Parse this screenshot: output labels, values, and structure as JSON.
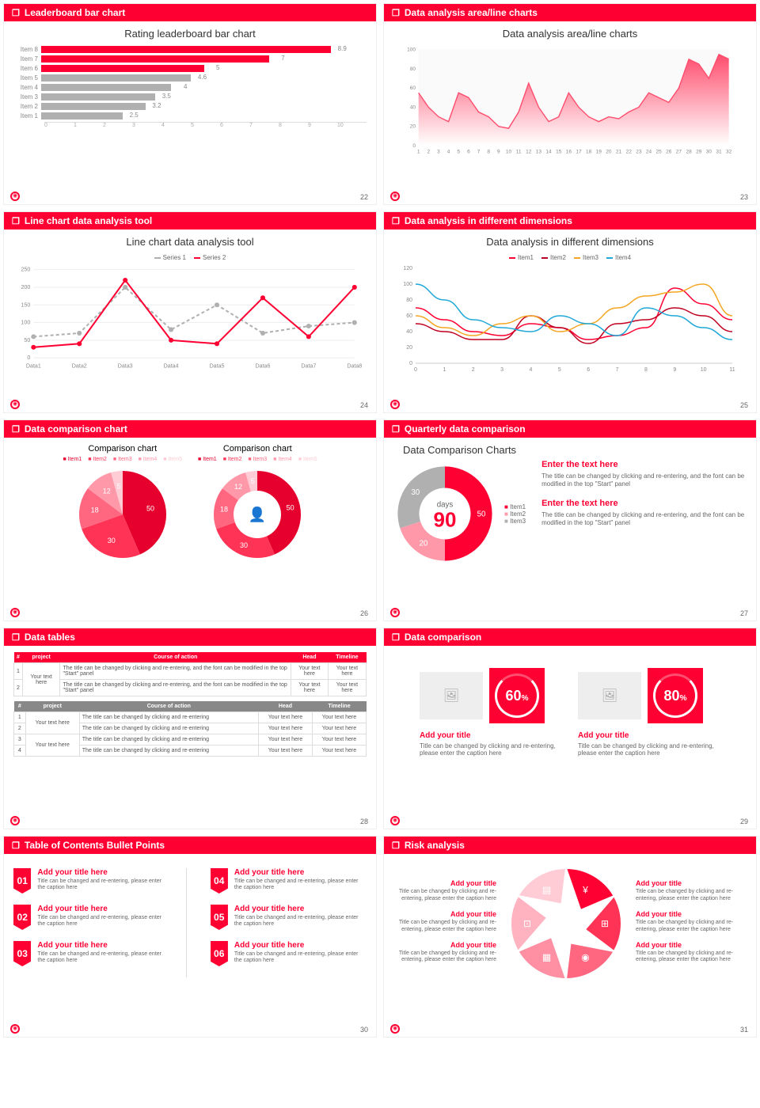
{
  "colors": {
    "accent": "#ff0033",
    "gray": "#b0b0b0",
    "text": "#555555",
    "light": "#eeeeee"
  },
  "slides": [
    {
      "header": "Leaderboard bar chart",
      "page": 22,
      "title": "Rating leaderboard bar chart",
      "barchart": {
        "type": "bar-horizontal",
        "xlim": [
          0,
          10
        ],
        "xtick_step": 1,
        "items": [
          {
            "label": "Item 8",
            "value": 8.9,
            "color": "#ff0033"
          },
          {
            "label": "Item 7",
            "value": 7.0,
            "color": "#ff0033"
          },
          {
            "label": "Item 6",
            "value": 5.0,
            "color": "#ff0033"
          },
          {
            "label": "Item 5",
            "value": 4.6,
            "color": "#b0b0b0"
          },
          {
            "label": "Item 4",
            "value": 4.0,
            "color": "#b0b0b0"
          },
          {
            "label": "Item 3",
            "value": 3.5,
            "color": "#b0b0b0"
          },
          {
            "label": "Item 2",
            "value": 3.2,
            "color": "#b0b0b0"
          },
          {
            "label": "Item 1",
            "value": 2.5,
            "color": "#b0b0b0"
          }
        ]
      }
    },
    {
      "header": "Data analysis area/line charts",
      "page": 23,
      "title": "Data analysis area/line charts",
      "areachart": {
        "type": "area",
        "ylim": [
          0,
          100
        ],
        "ytick_step": 20,
        "x_count": 32,
        "fill": "#ff4d6d",
        "background": "#fafafa",
        "values": [
          55,
          40,
          30,
          25,
          55,
          50,
          35,
          30,
          20,
          18,
          35,
          65,
          40,
          25,
          30,
          55,
          40,
          30,
          25,
          30,
          28,
          35,
          40,
          55,
          50,
          45,
          60,
          90,
          85,
          70,
          95,
          90
        ]
      }
    },
    {
      "header": "Line chart data analysis tool",
      "page": 24,
      "title": "Line chart data analysis tool",
      "linechart": {
        "type": "line",
        "ylim": [
          0,
          250
        ],
        "ytick_step": 50,
        "categories": [
          "Data1",
          "Data2",
          "Data3",
          "Data4",
          "Data5",
          "Data6",
          "Data7",
          "Data8"
        ],
        "series": [
          {
            "name": "Series 1",
            "color": "#b0b0b0",
            "dash": "4,3",
            "values": [
              60,
              70,
              200,
              80,
              150,
              70,
              90,
              100
            ]
          },
          {
            "name": "Series 2",
            "color": "#ff0033",
            "dash": "0",
            "values": [
              30,
              40,
              220,
              50,
              40,
              170,
              60,
              200
            ]
          }
        ]
      }
    },
    {
      "header": "Data analysis in different dimensions",
      "page": 25,
      "title": "Data analysis in different dimensions",
      "multiline": {
        "type": "line",
        "ylim": [
          0,
          120
        ],
        "ytick_step": 20,
        "x_count": 12,
        "series": [
          {
            "name": "Item1",
            "color": "#ff0033",
            "values": [
              70,
              55,
              40,
              35,
              50,
              45,
              30,
              35,
              45,
              95,
              75,
              55
            ]
          },
          {
            "name": "Item2",
            "color": "#c00020",
            "values": [
              50,
              40,
              30,
              30,
              60,
              45,
              25,
              50,
              55,
              70,
              60,
              40
            ]
          },
          {
            "name": "Item3",
            "color": "#f5a623",
            "values": [
              60,
              45,
              35,
              50,
              60,
              40,
              50,
              70,
              85,
              90,
              100,
              60
            ]
          },
          {
            "name": "Item4",
            "color": "#1fa8d8",
            "values": [
              100,
              80,
              55,
              45,
              40,
              60,
              50,
              35,
              70,
              60,
              45,
              30
            ]
          }
        ]
      }
    },
    {
      "header": "Data comparison chart",
      "page": 26,
      "pies": [
        {
          "title": "Comparison chart",
          "type": "pie",
          "legend": [
            "Item1",
            "Item2",
            "Item3",
            "Item4",
            "Item5"
          ],
          "slices": [
            {
              "v": 50,
              "c": "#e6002d"
            },
            {
              "v": 30,
              "c": "#ff3355"
            },
            {
              "v": 18,
              "c": "#ff6680"
            },
            {
              "v": 12,
              "c": "#ff99aa"
            },
            {
              "v": 5,
              "c": "#ffccd5"
            }
          ]
        },
        {
          "title": "Comparison chart",
          "type": "donut",
          "legend": [
            "Item1",
            "Item2",
            "Item3",
            "Item4",
            "Item5"
          ],
          "slices": [
            {
              "v": 50,
              "c": "#e6002d"
            },
            {
              "v": 30,
              "c": "#ff3355"
            },
            {
              "v": 18,
              "c": "#ff6680"
            },
            {
              "v": 12,
              "c": "#ff99aa"
            },
            {
              "v": 5,
              "c": "#ffccd5"
            }
          ],
          "center_icon": "👤"
        }
      ]
    },
    {
      "header": "Quarterly data comparison",
      "page": 27,
      "title": "Data Comparison Charts",
      "donut": {
        "type": "donut",
        "center_label": "days",
        "center_value": "90",
        "legend": [
          "Item1",
          "Item2",
          "Item3"
        ],
        "slices": [
          {
            "v": 50,
            "c": "#ff0033"
          },
          {
            "v": 20,
            "c": "#ff99aa"
          },
          {
            "v": 30,
            "c": "#b0b0b0"
          }
        ]
      },
      "texts": [
        {
          "h": "Enter the text here",
          "p": "The title can be changed by clicking and re-entering, and the font can be modified in the top \"Start\" panel"
        },
        {
          "h": "Enter the text here",
          "p": "The title can be changed by clicking and re-entering, and the font can be modified in the top \"Start\" panel"
        }
      ]
    },
    {
      "header": "Data tables",
      "page": 28,
      "table1": {
        "columns": [
          "#",
          "project",
          "Course of action",
          "Head",
          "Timeline"
        ],
        "rows": [
          [
            "1",
            "Your text here",
            "The title can be changed by clicking and re-entering, and the font can be modified in the top \"Start\" panel",
            "Your text here",
            "Your text here"
          ],
          [
            "2",
            "",
            "The title can be changed by clicking and re-entering, and the font can be modified in the top \"Start\" panel",
            "Your text here",
            "Your text here"
          ]
        ]
      },
      "table2": {
        "columns": [
          "#",
          "project",
          "Course of action",
          "Head",
          "Timeline"
        ],
        "rows": [
          [
            "1",
            "Your text here",
            "The title can be changed by clicking and re-entering",
            "Your text here",
            "Your text here"
          ],
          [
            "2",
            "",
            "The title can be changed by clicking and re-entering",
            "Your text here",
            "Your text here"
          ],
          [
            "3",
            "Your text here",
            "The title can be changed by clicking and re-entering",
            "Your text here",
            "Your text here"
          ],
          [
            "4",
            "",
            "The title can be changed by clicking and re-entering",
            "Your text here",
            "Your text here"
          ]
        ]
      }
    },
    {
      "header": "Data comparison",
      "page": 29,
      "cards": [
        {
          "pct": "60%",
          "h": "Add your title",
          "p": "Title can be changed by clicking and re-entering, please enter the caption here"
        },
        {
          "pct": "80%",
          "h": "Add your title",
          "p": "Title can be changed by clicking and re-entering, please enter the caption here"
        }
      ]
    },
    {
      "header": "Table of Contents Bullet Points",
      "page": 30,
      "toc": [
        {
          "n": "01",
          "h": "Add your title here",
          "p": "Title can be changed and re-entering, please enter the caption here"
        },
        {
          "n": "02",
          "h": "Add your title here",
          "p": "Title can be changed and re-entering, please enter the caption here"
        },
        {
          "n": "03",
          "h": "Add your title here",
          "p": "Title can be changed and re-entering, please enter the caption here"
        },
        {
          "n": "04",
          "h": "Add your title here",
          "p": "Title can be changed and re-entering, please enter the caption here"
        },
        {
          "n": "05",
          "h": "Add your title here",
          "p": "Title can be changed and re-entering, please enter the caption here"
        },
        {
          "n": "06",
          "h": "Add your title here",
          "p": "Title can be changed and re-entering, please enter the caption here"
        }
      ]
    },
    {
      "header": "Risk analysis",
      "page": 31,
      "risk": [
        {
          "h": "Add your title",
          "p": "Title can be changed by clicking and re-entering, please enter the caption here"
        },
        {
          "h": "Add your title",
          "p": "Title can be changed by clicking and re-entering, please enter the caption here"
        },
        {
          "h": "Add your title",
          "p": "Title can be changed by clicking and re-entering, please enter the caption here"
        },
        {
          "h": "Add your title",
          "p": "Title can be changed by clicking and re-entering, please enter the caption here"
        },
        {
          "h": "Add your title",
          "p": "Title can be changed by clicking and re-entering, please enter the caption here"
        },
        {
          "h": "Add your title",
          "p": "Title can be changed by clicking and re-entering, please enter the caption here"
        }
      ],
      "risk_colors": [
        "#ff0033",
        "#ff3355",
        "#ff6680",
        "#ff8fa3",
        "#ffb3c1",
        "#ffccd5"
      ]
    }
  ]
}
